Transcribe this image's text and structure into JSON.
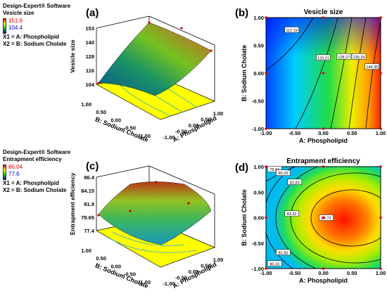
{
  "info": [
    {
      "software": "Design-Expert® Software",
      "response": "Vesicle size",
      "high": "151.9",
      "low": "104.4",
      "x1": "X1 = A: Phospholipid",
      "x2": "X2 = B: Sodium Cholate"
    },
    {
      "software": "Design-Expert® Software",
      "response": "Entrapment efficiency",
      "high": "86.04",
      "low": "77.6",
      "x1": "X1 = A: Phospholipid",
      "x2": "X2 = B: Sodium Cholate"
    }
  ],
  "panels": {
    "a": "(a)",
    "b": "(b)",
    "c": "(c)",
    "d": "(d)"
  },
  "colors": {
    "high": "#e00000",
    "low": "#0000cc",
    "floor": "#ffff00"
  },
  "chart_data": [
    {
      "type": "surface3d",
      "response": "Vesicle size",
      "zlabel": "Vesicle size",
      "xlabel": "A: Phospholipid",
      "ylabel": "B: Sodium Cholate",
      "zticks": [
        "104",
        "116",
        "128",
        "140",
        "153"
      ],
      "xticks": [
        "-1.00",
        "-0.50",
        "0.00",
        "0.50",
        "1.00"
      ],
      "yticks": [
        "-1.00",
        "-0.50",
        "0.00",
        "0.50",
        "1.00"
      ],
      "zlim": [
        104.4,
        151.9
      ]
    },
    {
      "type": "contour",
      "title": "Vesicle size",
      "xlabel": "A: Phospholipid",
      "ylabel": "B: Sodium Cholate",
      "xticks": [
        "-1.00",
        "-0.50",
        "0.00",
        "0.50",
        "1.00"
      ],
      "yticks": [
        "-1.00",
        "-0.50",
        "0.00",
        "0.50",
        "1.00"
      ],
      "contours": [
        {
          "level": "112.19",
          "x": -0.55,
          "y": 0.78
        },
        {
          "level": "120.21",
          "x": 0.0,
          "y": 0.28
        },
        {
          "level": "128.27",
          "x": 0.36,
          "y": 0.3
        },
        {
          "level": "136.33",
          "x": 0.62,
          "y": 0.3
        },
        {
          "level": "144.39",
          "x": 0.85,
          "y": 0.12
        }
      ]
    },
    {
      "type": "surface3d",
      "response": "Entrapment efficiency",
      "zlabel": "Entrapment efficiency",
      "xlabel": "A: Phospholipid",
      "ylabel": "B: Sodium Cholate",
      "zticks": [
        "77.4",
        "79.65",
        "81.9",
        "84.15",
        "86.4"
      ],
      "xticks": [
        "-1.00",
        "-0.50",
        "0.00",
        "0.50",
        "1.00"
      ],
      "yticks": [
        "-1.00",
        "-0.50",
        "0.00",
        "0.50",
        "1.00"
      ],
      "zlim": [
        77.6,
        86.04
      ]
    },
    {
      "type": "contour",
      "title": "Entrapment efficiency",
      "xlabel": "A: Phospholipid",
      "ylabel": "B: Sodium Cholate",
      "xticks": [
        "-1.00",
        "-0.50",
        "0.00",
        "0.50",
        "1.00"
      ],
      "yticks": [
        "-1.00",
        "-0.50",
        "0.00",
        "0.50",
        "1.00"
      ],
      "contours": [
        {
          "level": "78.84",
          "x": -0.85,
          "y": 0.95
        },
        {
          "level": "80.33",
          "x": -0.7,
          "y": 0.88
        },
        {
          "level": "81.83",
          "x": -0.5,
          "y": 0.7
        },
        {
          "level": "83.32",
          "x": -0.55,
          "y": 0.08
        },
        {
          "level": "84.72",
          "x": 0.05,
          "y": 0.0
        },
        {
          "level": "81.83",
          "x": -0.7,
          "y": -0.68
        },
        {
          "level": "80.33",
          "x": -0.85,
          "y": -0.9
        }
      ]
    }
  ]
}
